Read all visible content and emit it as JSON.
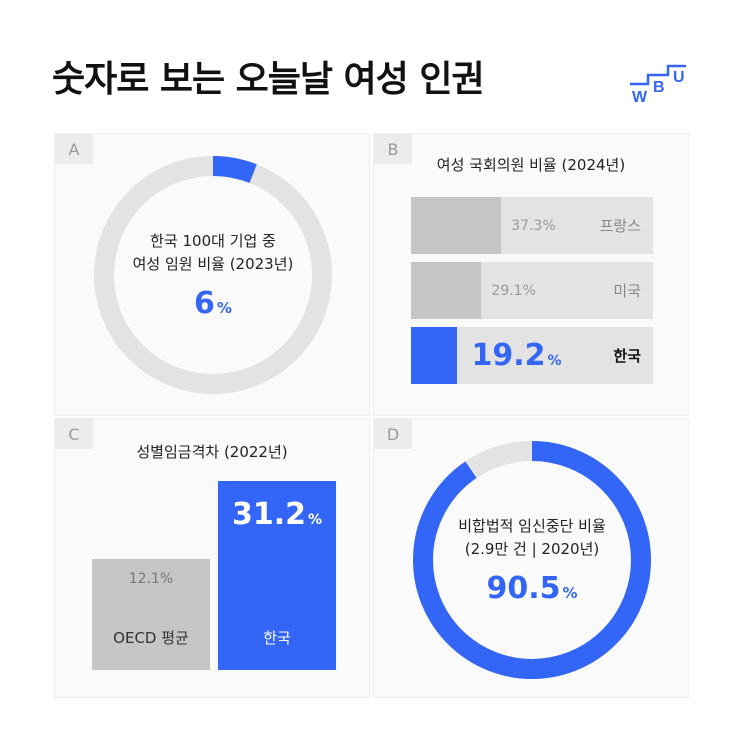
{
  "title": "숫자로 보는 오늘날 여성 인권",
  "logo": {
    "letters": [
      "W",
      "B",
      "U"
    ],
    "color": "#3366f6"
  },
  "colors": {
    "accent": "#3366f6",
    "bar_gray": "#c5c5c5",
    "track_gray": "#e3e3e3"
  },
  "panels": {
    "a": {
      "tag": "A",
      "line1": "한국 100대 기업 중",
      "line2": "여성 임원 비율 (2023년)",
      "value": "6",
      "unit": "%"
    },
    "b": {
      "tag": "B",
      "title": "여성 국회의원 비율 (2024년)"
    },
    "c": {
      "tag": "C",
      "title": "성별임금격차 (2022년)"
    },
    "d": {
      "tag": "D",
      "line1": "비합법적 임신중단 비율",
      "line2": "(2.9만 건 | 2020년)",
      "value": "90.5",
      "unit": "%"
    }
  },
  "chart_data": [
    {
      "type": "pie",
      "id": "A",
      "values": [
        6,
        94
      ],
      "labels": [
        "여성 임원",
        ""
      ],
      "unit": "%"
    },
    {
      "type": "bar",
      "id": "B",
      "orientation": "horizontal",
      "categories": [
        "프랑스",
        "미국",
        "한국"
      ],
      "values": [
        37.3,
        29.1,
        19.2
      ],
      "highlight": "한국",
      "unit": "%"
    },
    {
      "type": "bar",
      "id": "C",
      "categories": [
        "OECD 평균",
        "한국"
      ],
      "values": [
        12.1,
        31.2
      ],
      "highlight": "한국",
      "unit": "%"
    },
    {
      "type": "pie",
      "id": "D",
      "values": [
        90.5,
        9.5
      ],
      "labels": [
        "비합법적",
        ""
      ],
      "unit": "%"
    }
  ]
}
